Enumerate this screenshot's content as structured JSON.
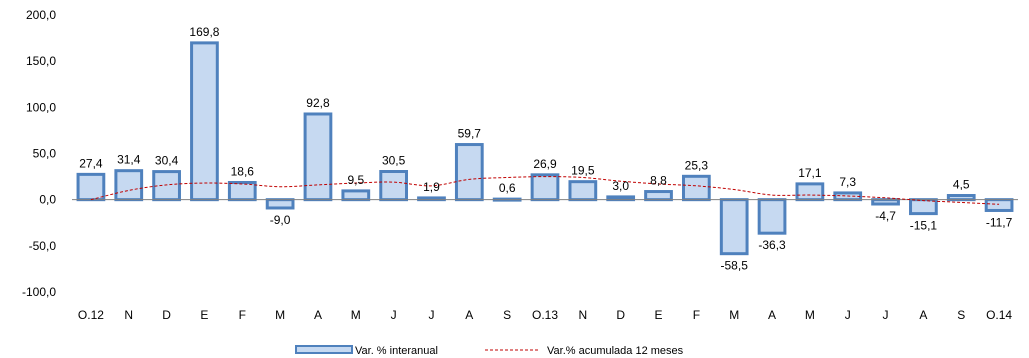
{
  "chart_data": {
    "type": "bar",
    "categories": [
      "O.12",
      "N",
      "D",
      "E",
      "F",
      "M",
      "A",
      "M",
      "J",
      "J",
      "A",
      "S",
      "O.13",
      "N",
      "D",
      "E",
      "F",
      "M",
      "A",
      "M",
      "J",
      "J",
      "A",
      "S",
      "O.14"
    ],
    "series": [
      {
        "name": "Var. % interanual",
        "type": "bar",
        "values": [
          27.4,
          31.4,
          30.4,
          169.8,
          18.6,
          -9.0,
          92.8,
          9.5,
          30.5,
          1.9,
          59.7,
          0.6,
          26.9,
          19.5,
          3.0,
          8.8,
          25.3,
          -58.5,
          -36.3,
          17.1,
          7.3,
          -4.7,
          -15.1,
          4.5,
          -11.7
        ],
        "labels": [
          "27,4",
          "31,4",
          "30,4",
          "169,8",
          "18,6",
          "-9,0",
          "92,8",
          "9,5",
          "30,5",
          "1,9",
          "59,7",
          "0,6",
          "26,9",
          "19,5",
          "3,0",
          "8,8",
          "25,3",
          "-58,5",
          "-36,3",
          "17,1",
          "7,3",
          "-4,7",
          "-15,1",
          "4,5",
          "-11,7"
        ]
      },
      {
        "name": "Var.% acumulada 12 meses",
        "type": "line",
        "values": [
          0,
          10,
          16,
          18,
          17,
          14,
          16,
          18,
          19,
          15,
          22,
          24,
          25,
          24,
          20,
          17,
          15,
          11,
          5,
          5,
          4,
          2,
          -1,
          -3,
          -5
        ]
      }
    ],
    "ylim": [
      -100,
      200
    ],
    "yticks": [
      "-100,0",
      "-50,0",
      "0,0",
      "50,0",
      "100,0",
      "150,0",
      "200,0"
    ],
    "ytick_values": [
      -100,
      -50,
      0,
      50,
      100,
      150,
      200
    ],
    "grid": false,
    "legend_position": "bottom",
    "colors": {
      "bar_fill": "#c6d9f1",
      "bar_stroke": "#4f81bd",
      "line": "#c00000",
      "axis": "#808080"
    }
  }
}
